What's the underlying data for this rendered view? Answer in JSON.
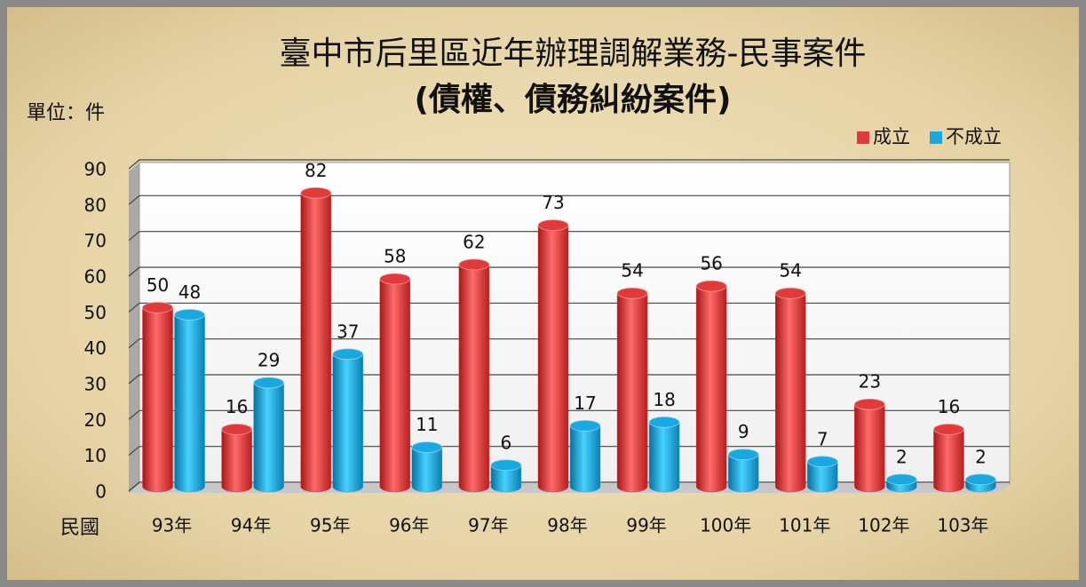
{
  "chart_data": {
    "type": "bar",
    "title": "臺中市后里區近年辦理調解業務-民事案件",
    "subtitle": "(債權、債務糾紛案件)",
    "y_label": "單位：件",
    "x_label": "民國",
    "categories": [
      "93年",
      "94年",
      "95年",
      "96年",
      "97年",
      "98年",
      "99年",
      "100年",
      "101年",
      "102年",
      "103年"
    ],
    "series": [
      {
        "name": "成立",
        "color": "#e03a3a",
        "values": [
          50,
          16,
          82,
          58,
          62,
          73,
          54,
          56,
          54,
          23,
          16
        ]
      },
      {
        "name": "不成立",
        "color": "#1aa8e0",
        "values": [
          48,
          29,
          37,
          11,
          6,
          17,
          18,
          9,
          7,
          2,
          2
        ]
      }
    ],
    "ylim": [
      0,
      90
    ],
    "yticks": [
      0,
      10,
      20,
      30,
      40,
      50,
      60,
      70,
      80,
      90
    ],
    "grid": true,
    "legend": "top-right"
  }
}
